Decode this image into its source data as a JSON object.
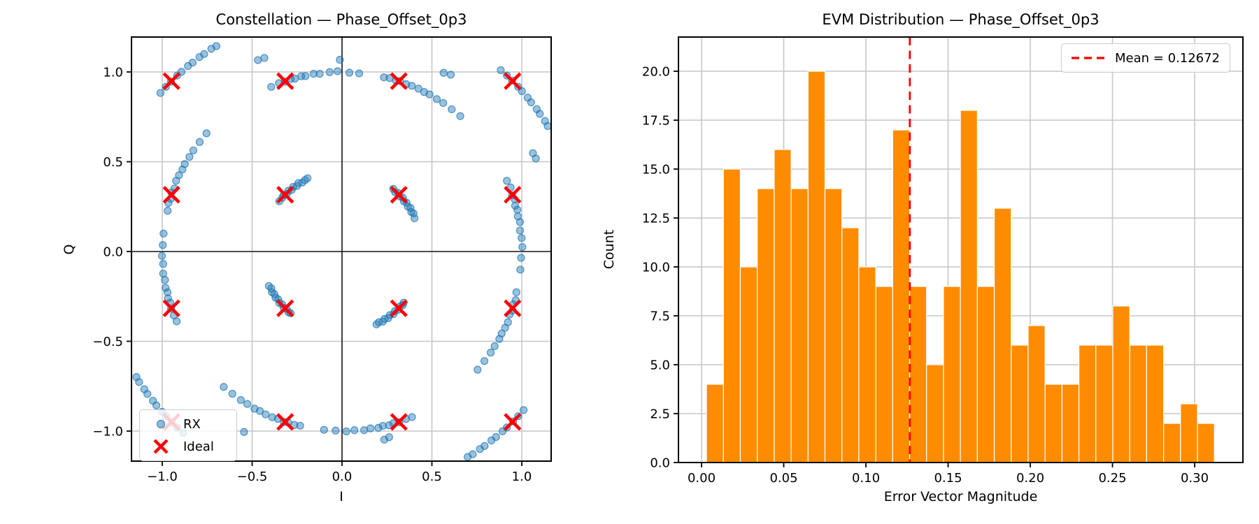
{
  "figure": {
    "background": "#ffffff"
  },
  "colors": {
    "rx_fill": "rgba(31,119,180,0.45)",
    "rx_edge": "rgba(31,119,180,0.75)",
    "ideal": "#ff0000",
    "hist_bar": "#ff8c00",
    "hist_bar_edge": "#ffffff",
    "mean_line": "#ff0000",
    "grid": "#c6c6c6",
    "zero_line": "#1a1a1a",
    "spine": "#000000",
    "text": "#000000"
  },
  "left_plot": {
    "title": "Constellation — Phase_Offset_0p3",
    "xlabel": "I",
    "ylabel": "Q",
    "xtick_labels": [
      "−1.0",
      "−0.5",
      "0.0",
      "0.5",
      "1.0"
    ],
    "ytick_labels": [
      "−1.0",
      "−0.5",
      "0.0",
      "0.5",
      "1.0"
    ],
    "legend": {
      "rx": "RX",
      "ideal": "Ideal"
    }
  },
  "right_plot": {
    "title": "EVM Distribution — Phase_Offset_0p3",
    "xlabel": "Error Vector Magnitude",
    "ylabel": "Count",
    "xtick_labels": [
      "0.00",
      "0.05",
      "0.10",
      "0.15",
      "0.20",
      "0.25",
      "0.30"
    ],
    "ytick_labels": [
      "0.0",
      "2.5",
      "5.0",
      "7.5",
      "10.0",
      "12.5",
      "15.0",
      "17.5",
      "20.0"
    ],
    "legend_label": "Mean = 0.12672"
  },
  "chart_data": [
    {
      "type": "scatter",
      "title": "Constellation — Phase_Offset_0p3",
      "xlabel": "I",
      "ylabel": "Q",
      "xlim": [
        -1.17,
        1.19
      ],
      "ylim": [
        -1.17,
        1.19
      ],
      "xticks": [
        -1.0,
        -0.5,
        0.0,
        0.5,
        1.0
      ],
      "yticks": [
        -1.0,
        -0.5,
        0.0,
        0.5,
        1.0
      ],
      "grid": true,
      "legend_position": "lower left",
      "series": [
        {
          "name": "RX",
          "points": [
            [
              0.285,
              0.349
            ],
            [
              0.295,
              0.331
            ],
            [
              0.312,
              0.326
            ],
            [
              0.32,
              0.307
            ],
            [
              0.338,
              0.3
            ],
            [
              0.344,
              0.28
            ],
            [
              0.359,
              0.272
            ],
            [
              0.366,
              0.25
            ],
            [
              0.381,
              0.243
            ],
            [
              0.385,
              0.22
            ],
            [
              0.398,
              0.212
            ],
            [
              0.403,
              0.185
            ],
            [
              -0.349,
              0.28
            ],
            [
              -0.332,
              0.299
            ],
            [
              -0.326,
              0.313
            ],
            [
              -0.307,
              0.32
            ],
            [
              -0.299,
              0.338
            ],
            [
              -0.28,
              0.343
            ],
            [
              -0.272,
              0.36
            ],
            [
              -0.251,
              0.365
            ],
            [
              -0.243,
              0.381
            ],
            [
              -0.221,
              0.384
            ],
            [
              -0.206,
              0.398
            ],
            [
              -0.192,
              0.408
            ],
            [
              -0.286,
              -0.344
            ],
            [
              -0.298,
              -0.338
            ],
            [
              -0.308,
              -0.32
            ],
            [
              -0.325,
              -0.313
            ],
            [
              -0.333,
              -0.294
            ],
            [
              -0.349,
              -0.286
            ],
            [
              -0.355,
              -0.266
            ],
            [
              -0.37,
              -0.257
            ],
            [
              -0.376,
              -0.237
            ],
            [
              -0.39,
              -0.227
            ],
            [
              -0.393,
              -0.205
            ],
            [
              -0.407,
              -0.192
            ],
            [
              0.343,
              -0.285
            ],
            [
              0.337,
              -0.299
            ],
            [
              0.321,
              -0.307
            ],
            [
              0.312,
              -0.325
            ],
            [
              0.294,
              -0.332
            ],
            [
              0.286,
              -0.349
            ],
            [
              0.266,
              -0.354
            ],
            [
              0.257,
              -0.371
            ],
            [
              0.237,
              -0.375
            ],
            [
              0.227,
              -0.39
            ],
            [
              0.205,
              -0.394
            ],
            [
              0.192,
              -0.406
            ],
            [
              0.917,
              0.394
            ],
            [
              0.938,
              0.357
            ],
            [
              0.946,
              0.313
            ],
            [
              0.96,
              0.291
            ],
            [
              0.963,
              0.255
            ],
            [
              0.975,
              0.233
            ],
            [
              0.978,
              0.196
            ],
            [
              0.99,
              0.164
            ],
            [
              0.99,
              0.117
            ],
            [
              0.999,
              0.075
            ],
            [
              1.003,
              0.025
            ],
            [
              0.996,
              -0.035
            ],
            [
              0.992,
              -0.101
            ],
            [
              -0.394,
              0.917
            ],
            [
              -0.351,
              0.938
            ],
            [
              -0.319,
              0.946
            ],
            [
              -0.285,
              0.961
            ],
            [
              -0.262,
              0.963
            ],
            [
              -0.227,
              0.976
            ],
            [
              -0.203,
              0.977
            ],
            [
              -0.158,
              0.99
            ],
            [
              -0.124,
              0.99
            ],
            [
              -0.069,
              0.999
            ],
            [
              -0.025,
              1.004
            ],
            [
              0.041,
              0.996
            ],
            [
              0.095,
              0.992
            ],
            [
              -0.92,
              -0.389
            ],
            [
              -0.936,
              -0.356
            ],
            [
              -0.951,
              -0.318
            ],
            [
              -0.956,
              -0.285
            ],
            [
              -0.968,
              -0.261
            ],
            [
              -0.971,
              -0.227
            ],
            [
              -0.982,
              -0.202
            ],
            [
              -0.985,
              -0.158
            ],
            [
              -0.995,
              -0.123
            ],
            [
              -0.995,
              -0.069
            ],
            [
              -1.002,
              -0.024
            ],
            [
              -0.997,
              0.036
            ],
            [
              -0.993,
              0.1
            ],
            [
              0.389,
              -0.922
            ],
            [
              0.356,
              -0.933
            ],
            [
              0.318,
              -0.951
            ],
            [
              0.285,
              -0.956
            ],
            [
              0.261,
              -0.968
            ],
            [
              0.227,
              -0.971
            ],
            [
              0.202,
              -0.982
            ],
            [
              0.158,
              -0.985
            ],
            [
              0.123,
              -0.995
            ],
            [
              0.069,
              -0.995
            ],
            [
              0.024,
              -1.002
            ],
            [
              -0.036,
              -0.997
            ],
            [
              -0.1,
              -0.993
            ],
            [
              0.233,
              0.97
            ],
            [
              0.265,
              0.966
            ],
            [
              0.3,
              0.952
            ],
            [
              0.323,
              0.949
            ],
            [
              0.357,
              0.932
            ],
            [
              0.388,
              0.923
            ],
            [
              0.425,
              0.907
            ],
            [
              0.457,
              0.888
            ],
            [
              0.487,
              0.875
            ],
            [
              0.527,
              0.849
            ],
            [
              0.563,
              0.827
            ],
            [
              0.61,
              0.792
            ],
            [
              0.658,
              0.754
            ],
            [
              -0.97,
              0.227
            ],
            [
              -0.966,
              0.271
            ],
            [
              -0.952,
              0.294
            ],
            [
              -0.949,
              0.329
            ],
            [
              -0.932,
              0.351
            ],
            [
              -0.923,
              0.394
            ],
            [
              -0.907,
              0.425
            ],
            [
              -0.888,
              0.457
            ],
            [
              -0.875,
              0.487
            ],
            [
              -0.849,
              0.527
            ],
            [
              -0.827,
              0.563
            ],
            [
              -0.792,
              0.61
            ],
            [
              -0.754,
              0.658
            ],
            [
              -0.233,
              -0.97
            ],
            [
              -0.265,
              -0.966
            ],
            [
              -0.3,
              -0.952
            ],
            [
              -0.323,
              -0.949
            ],
            [
              -0.357,
              -0.932
            ],
            [
              -0.388,
              -0.923
            ],
            [
              -0.425,
              -0.907
            ],
            [
              -0.457,
              -0.888
            ],
            [
              -0.487,
              -0.875
            ],
            [
              -0.527,
              -0.849
            ],
            [
              -0.563,
              -0.827
            ],
            [
              -0.61,
              -0.792
            ],
            [
              -0.658,
              -0.754
            ],
            [
              0.97,
              -0.227
            ],
            [
              0.966,
              -0.271
            ],
            [
              0.952,
              -0.294
            ],
            [
              0.949,
              -0.329
            ],
            [
              0.932,
              -0.351
            ],
            [
              0.923,
              -0.394
            ],
            [
              0.907,
              -0.425
            ],
            [
              0.888,
              -0.457
            ],
            [
              0.875,
              -0.487
            ],
            [
              0.849,
              -0.527
            ],
            [
              0.827,
              -0.563
            ],
            [
              0.792,
              -0.61
            ],
            [
              0.754,
              -0.658
            ],
            [
              0.883,
              1.01
            ],
            [
              0.917,
              0.98
            ],
            [
              0.946,
              0.952
            ],
            [
              0.98,
              0.917
            ],
            [
              1.001,
              0.893
            ],
            [
              1.033,
              0.857
            ],
            [
              1.052,
              0.831
            ],
            [
              1.083,
              0.793
            ],
            [
              1.1,
              0.767
            ],
            [
              1.129,
              0.727
            ],
            [
              1.144,
              0.699
            ],
            [
              -1.01,
              0.883
            ],
            [
              -0.98,
              0.917
            ],
            [
              -0.952,
              0.946
            ],
            [
              -0.917,
              0.98
            ],
            [
              -0.893,
              1.001
            ],
            [
              -0.857,
              1.033
            ],
            [
              -0.831,
              1.052
            ],
            [
              -0.793,
              1.083
            ],
            [
              -0.767,
              1.1
            ],
            [
              -0.727,
              1.129
            ],
            [
              -0.699,
              1.144
            ],
            [
              -0.883,
              -1.01
            ],
            [
              -0.917,
              -0.98
            ],
            [
              -0.946,
              -0.952
            ],
            [
              -0.98,
              -0.917
            ],
            [
              -1.001,
              -0.893
            ],
            [
              -1.033,
              -0.857
            ],
            [
              -1.052,
              -0.831
            ],
            [
              -1.083,
              -0.793
            ],
            [
              -1.1,
              -0.767
            ],
            [
              -1.129,
              -0.727
            ],
            [
              -1.144,
              -0.699
            ],
            [
              1.01,
              -0.883
            ],
            [
              0.98,
              -0.917
            ],
            [
              0.952,
              -0.946
            ],
            [
              0.917,
              -0.98
            ],
            [
              0.893,
              -1.001
            ],
            [
              0.857,
              -1.033
            ],
            [
              0.831,
              -1.052
            ],
            [
              0.793,
              -1.083
            ],
            [
              0.767,
              -1.1
            ],
            [
              0.727,
              -1.129
            ],
            [
              0.699,
              -1.144
            ],
            [
              -0.468,
              1.066
            ],
            [
              -0.432,
              1.078
            ],
            [
              -0.012,
              1.068
            ],
            [
              0.565,
              0.995
            ],
            [
              0.605,
              0.985
            ],
            [
              0.235,
              -1.048
            ],
            [
              0.262,
              -1.034
            ],
            [
              -0.545,
              -1.005
            ],
            [
              1.062,
              0.548
            ],
            [
              1.078,
              0.518
            ]
          ]
        },
        {
          "name": "Ideal",
          "points": [
            [
              -0.9487,
              0.9487
            ],
            [
              -0.3162,
              0.9487
            ],
            [
              0.3162,
              0.9487
            ],
            [
              0.9487,
              0.9487
            ],
            [
              -0.9487,
              0.3162
            ],
            [
              -0.3162,
              0.3162
            ],
            [
              0.3162,
              0.3162
            ],
            [
              0.9487,
              0.3162
            ],
            [
              -0.9487,
              -0.3162
            ],
            [
              -0.3162,
              -0.3162
            ],
            [
              0.3162,
              -0.3162
            ],
            [
              0.9487,
              -0.3162
            ],
            [
              -0.9487,
              -0.9487
            ],
            [
              -0.3162,
              -0.9487
            ],
            [
              0.3162,
              -0.9487
            ],
            [
              0.9487,
              -0.9487
            ]
          ]
        }
      ]
    },
    {
      "type": "histogram",
      "title": "EVM Distribution — Phase_Offset_0p3",
      "xlabel": "Error Vector Magnitude",
      "ylabel": "Count",
      "bin_start": 0.003,
      "bin_width": 0.0103,
      "counts": [
        4,
        15,
        10,
        14,
        16,
        14,
        20,
        14,
        12,
        10,
        9,
        17,
        9,
        5,
        9,
        18,
        9,
        13,
        6,
        7,
        4,
        4,
        6,
        6,
        8,
        6,
        6,
        2,
        3,
        2
      ],
      "mean": 0.12672,
      "xticks": [
        0.0,
        0.05,
        0.1,
        0.15,
        0.2,
        0.25,
        0.3
      ],
      "yticks": [
        0,
        2.5,
        5,
        7.5,
        10,
        12.5,
        15,
        17.5,
        20
      ],
      "xlim": [
        -0.014,
        0.329
      ],
      "ylim": [
        0,
        21.7
      ],
      "grid": true,
      "legend_position": "upper right"
    }
  ]
}
